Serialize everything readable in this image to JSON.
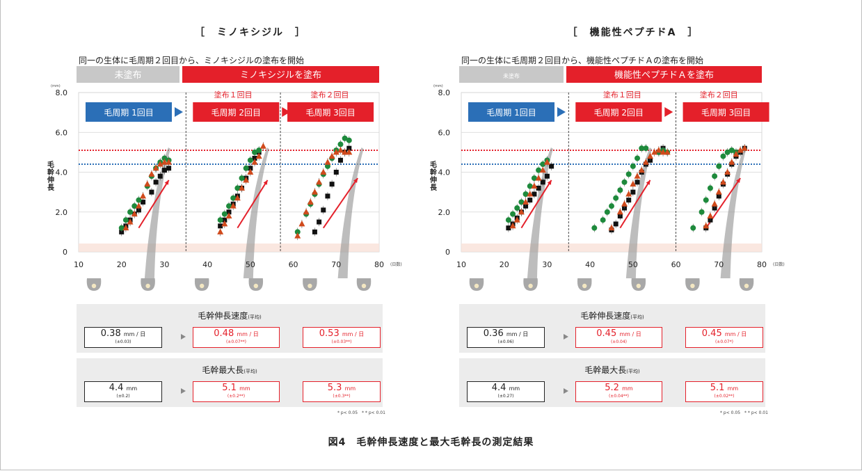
{
  "figure_caption": "図4　毛幹伸長速度と最大毛幹長の測定結果",
  "colors": {
    "red": "#e4202a",
    "blue": "#2b6fb7",
    "gray": "#c8c8c8",
    "green": "#1e8a3c",
    "orange": "#d04a1c",
    "black": "#111111"
  },
  "panels": [
    {
      "title": "［　ミノキシジル　］",
      "subtitle": "同一の生体に毛周期２回目から、ミノキシジルの塗布を開始",
      "band_gray": "未塗布",
      "band_red": "ミノキシジルを塗布",
      "stage_labels": [
        "塗布１回目",
        "塗布２回目"
      ],
      "cycles": [
        "毛周期 1回目",
        "毛周期 2回目",
        "毛周期 3回目"
      ],
      "unit": "(mm)",
      "ylabel": "毛幹伸長",
      "xunit": "(日数)",
      "speed_title": "毛幹伸長速度",
      "speed_title_small": "(平均)",
      "speed": [
        {
          "value": "0.38",
          "unit": "mm / 日",
          "sd": "(±0.03)",
          "style": "black"
        },
        {
          "value": "0.48",
          "unit": "mm / 日",
          "sd": "(±0.07**)",
          "style": "red"
        },
        {
          "value": "0.53",
          "unit": "mm / 日",
          "sd": "(±0.03**)",
          "style": "red"
        }
      ],
      "max_title": "毛幹最大長",
      "max_title_small": "(平均)",
      "max": [
        {
          "value": "4.4",
          "unit": "mm",
          "sd": "(±0.2)",
          "style": "black"
        },
        {
          "value": "5.1",
          "unit": "mm",
          "sd": "(±0.2**)",
          "style": "red"
        },
        {
          "value": "5.3",
          "unit": "mm",
          "sd": "(±0.3**)",
          "style": "red"
        }
      ],
      "pnote": "* p< 0.05　* * p< 0.01"
    },
    {
      "title": "［　機能性ペプチドA　］",
      "subtitle": "同一の生体に毛周期２回目から、機能性ペプチドＡの塗布を開始",
      "band_gray": "未塗布",
      "band_red": "機能性ペプチドＡを塗布",
      "stage_labels": [
        "塗布１回目",
        "塗布２回目"
      ],
      "cycles": [
        "毛周期 1回目",
        "毛周期 2回目",
        "毛周期 3回目"
      ],
      "unit": "(mm)",
      "ylabel": "毛幹伸長",
      "xunit": "(日数)",
      "speed_title": "毛幹伸長速度",
      "speed_title_small": "(平均)",
      "speed": [
        {
          "value": "0.36",
          "unit": "mm / 日",
          "sd": "(±0.06)",
          "style": "black"
        },
        {
          "value": "0.45",
          "unit": "mm / 日",
          "sd": "(±0.04)",
          "style": "red"
        },
        {
          "value": "0.45",
          "unit": "mm / 日",
          "sd": "(±0.07*)",
          "style": "red"
        }
      ],
      "max_title": "毛幹最大長",
      "max_title_small": "(平均)",
      "max": [
        {
          "value": "4.4",
          "unit": "mm",
          "sd": "(±0.27)",
          "style": "black"
        },
        {
          "value": "5.2",
          "unit": "mm",
          "sd": "(±0.04**)",
          "style": "red"
        },
        {
          "value": "5.1",
          "unit": "mm",
          "sd": "(±0.02**)",
          "style": "red"
        }
      ],
      "pnote": "* p< 0.05　* * p< 0.01"
    }
  ],
  "chart_data": [
    {
      "type": "scatter",
      "title": "［　ミノキシジル　］",
      "xlabel": "(日数)",
      "ylabel": "毛幹伸長",
      "yunit": "(mm)",
      "xlim": [
        10,
        80
      ],
      "ylim": [
        0,
        8
      ],
      "xticks": [
        10,
        20,
        30,
        40,
        50,
        60,
        70,
        80
      ],
      "yticks": [
        "0",
        "2.0",
        "4.0",
        "6.0",
        "8.0"
      ],
      "grid": true,
      "reference_lines": [
        {
          "y": 5.1,
          "color": "red",
          "style": "dotted"
        },
        {
          "y": 4.4,
          "color": "blue",
          "style": "dotted"
        }
      ],
      "cycle_boundaries": [
        35,
        57
      ],
      "series": [
        {
          "marker": "square",
          "color": "#111111",
          "x": [
            20,
            21,
            22,
            23,
            24,
            25,
            27,
            28,
            29,
            30,
            31,
            43,
            44,
            45,
            46,
            47,
            48,
            49,
            50,
            51,
            52,
            65,
            66,
            67,
            68,
            69,
            70,
            71,
            72,
            73
          ],
          "y": [
            1.0,
            1.3,
            1.6,
            1.9,
            2.1,
            2.5,
            3.0,
            3.5,
            3.8,
            4.1,
            4.2,
            1.3,
            1.6,
            2.0,
            2.4,
            2.8,
            3.2,
            3.7,
            4.2,
            4.7,
            5.0,
            1.0,
            1.5,
            2.1,
            2.8,
            3.4,
            4.0,
            4.6,
            5.0,
            5.2
          ]
        },
        {
          "marker": "circle",
          "color": "#1e8a3c",
          "x": [
            20,
            21,
            22,
            23,
            24,
            26,
            27,
            28,
            29,
            30,
            31,
            43,
            44,
            45,
            46,
            47,
            48,
            49,
            50,
            51,
            52,
            61,
            63,
            64,
            65,
            66,
            67,
            68,
            69,
            70,
            71,
            72,
            73
          ],
          "y": [
            1.2,
            1.6,
            2.0,
            2.3,
            2.6,
            3.3,
            3.8,
            4.2,
            4.5,
            4.7,
            4.6,
            1.6,
            1.9,
            2.3,
            2.7,
            3.2,
            3.7,
            4.2,
            4.6,
            5.0,
            5.1,
            1.0,
            1.9,
            2.4,
            2.9,
            3.4,
            3.9,
            4.3,
            4.7,
            5.1,
            5.4,
            5.7,
            5.6
          ]
        },
        {
          "marker": "triangle",
          "color": "#d04a1c",
          "x": [
            21,
            22,
            23,
            24,
            25,
            26,
            27,
            28,
            29,
            30,
            31,
            43,
            44,
            45,
            46,
            47,
            48,
            49,
            50,
            51,
            52,
            53,
            61,
            62,
            63,
            64,
            65,
            66,
            67,
            68,
            69,
            70,
            71,
            72,
            73
          ],
          "y": [
            1.2,
            1.5,
            1.9,
            2.3,
            2.8,
            3.4,
            3.9,
            4.2,
            4.4,
            4.5,
            4.5,
            1.0,
            1.4,
            1.8,
            2.3,
            2.7,
            3.2,
            3.6,
            4.0,
            4.5,
            4.8,
            5.3,
            0.8,
            1.4,
            2.0,
            2.5,
            3.0,
            3.5,
            4.0,
            4.5,
            4.8,
            5.0,
            5.1,
            5.0,
            5.0
          ]
        }
      ]
    },
    {
      "type": "scatter",
      "title": "［　機能性ペプチドA　］",
      "xlabel": "(日数)",
      "ylabel": "毛幹伸長",
      "yunit": "(mm)",
      "xlim": [
        10,
        80
      ],
      "ylim": [
        0,
        8
      ],
      "xticks": [
        10,
        20,
        30,
        40,
        50,
        60,
        70,
        80
      ],
      "yticks": [
        "0",
        "2.0",
        "4.0",
        "6.0",
        "8.0"
      ],
      "grid": true,
      "reference_lines": [
        {
          "y": 5.1,
          "color": "red",
          "style": "dotted"
        },
        {
          "y": 4.4,
          "color": "blue",
          "style": "dotted"
        }
      ],
      "cycle_boundaries": [
        35,
        60
      ],
      "series": [
        {
          "marker": "square",
          "color": "#111111",
          "x": [
            21,
            22,
            23,
            24,
            25,
            26,
            27,
            28,
            29,
            30,
            31,
            45,
            46,
            47,
            48,
            49,
            50,
            51,
            52,
            53,
            54,
            56,
            57,
            67,
            68,
            69,
            70,
            71,
            72,
            73,
            74,
            75,
            76
          ],
          "y": [
            1.2,
            1.4,
            1.7,
            2.0,
            2.3,
            2.6,
            2.9,
            3.2,
            3.5,
            3.8,
            4.3,
            1.1,
            1.4,
            1.8,
            2.2,
            2.6,
            3.0,
            3.5,
            4.0,
            4.4,
            4.6,
            5.0,
            5.2,
            1.2,
            1.6,
            2.2,
            2.8,
            3.4,
            3.9,
            4.4,
            4.8,
            5.0,
            5.2
          ]
        },
        {
          "marker": "circle",
          "color": "#1e8a3c",
          "x": [
            21,
            22,
            23,
            24,
            25,
            26,
            27,
            28,
            29,
            30,
            41,
            43,
            44,
            45,
            46,
            47,
            48,
            49,
            50,
            51,
            52,
            53,
            56,
            57,
            58,
            64,
            66,
            67,
            68,
            69,
            70,
            71,
            72,
            73,
            74
          ],
          "y": [
            1.6,
            1.9,
            2.2,
            2.5,
            2.9,
            3.3,
            3.7,
            4.1,
            4.4,
            4.6,
            1.2,
            1.6,
            2.0,
            2.3,
            2.7,
            3.1,
            3.5,
            3.9,
            4.3,
            4.7,
            5.2,
            5.2,
            5.0,
            5.1,
            5.0,
            1.2,
            2.0,
            2.6,
            3.2,
            3.8,
            4.3,
            4.8,
            5.0,
            5.1,
            5.0
          ]
        },
        {
          "marker": "triangle",
          "color": "#d04a1c",
          "x": [
            22,
            23,
            24,
            25,
            26,
            27,
            28,
            29,
            30,
            45,
            47,
            48,
            49,
            50,
            51,
            52,
            53,
            54,
            55,
            56,
            57,
            58,
            67,
            68,
            69,
            70,
            71,
            72,
            73,
            74,
            75,
            76
          ],
          "y": [
            1.3,
            1.6,
            2.0,
            2.5,
            2.9,
            3.3,
            3.7,
            4.1,
            4.5,
            1.2,
            2.0,
            2.4,
            2.9,
            3.4,
            3.8,
            4.1,
            4.5,
            4.8,
            5.0,
            5.1,
            5.0,
            5.0,
            1.3,
            1.8,
            2.4,
            3.0,
            3.5,
            4.0,
            4.5,
            4.9,
            5.1,
            5.2
          ]
        }
      ]
    }
  ]
}
